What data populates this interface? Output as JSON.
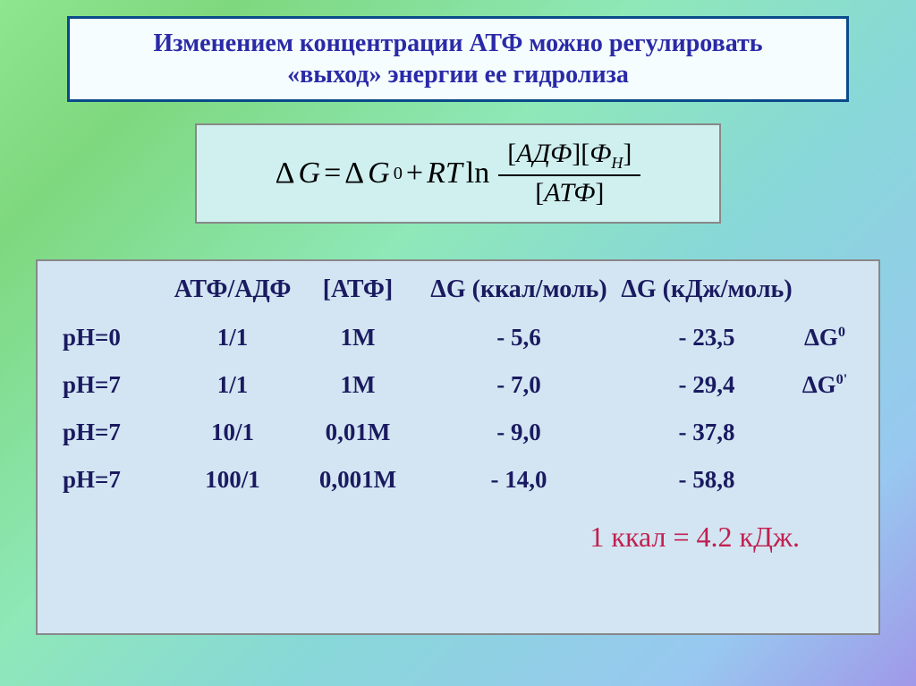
{
  "title": {
    "line1": "Изменением концентрации АТФ можно регулировать",
    "line2": "«выход» энергии ее гидролиза"
  },
  "formula": {
    "lhs_delta": "Δ",
    "lhs_G": "G",
    "eq1": " = ",
    "dG0_delta": "Δ",
    "dG0_G": "G",
    "dG0_sup": "0",
    "plus": " + ",
    "RT": "RT",
    "ln": " ln ",
    "num_left": "[",
    "num_adp": "АДФ",
    "num_mid": "][",
    "num_phi": "Ф",
    "num_phi_sub": "Н",
    "num_right": "]",
    "den_left": "[",
    "den_atp": "АТФ",
    "den_right": "]"
  },
  "headers": {
    "ratio": "АТФ/АДФ",
    "atp": "[АТФ]",
    "g_kcal": "ΔG (ккал/моль)",
    "g_kj": "ΔG (кДж/моль)"
  },
  "rows": [
    {
      "ph": "pH=0",
      "ratio": "1/1",
      "atp": "1M",
      "g_kcal": "- 5,6",
      "g_kj": "- 23,5",
      "note": "ΔG",
      "note_sup": "0"
    },
    {
      "ph": "pH=7",
      "ratio": "1/1",
      "atp": "1M",
      "g_kcal": "- 7,0",
      "g_kj": "- 29,4",
      "note": "ΔG",
      "note_sup": "0'"
    },
    {
      "ph": "pH=7",
      "ratio": "10/1",
      "atp": "0,01M",
      "g_kcal": "- 9,0",
      "g_kj": "- 37,8",
      "note": "",
      "note_sup": ""
    },
    {
      "ph": "pH=7",
      "ratio": "100/1",
      "atp": "0,001M",
      "g_kcal": "- 14,0",
      "g_kj": "- 58,8",
      "note": "",
      "note_sup": ""
    }
  ],
  "conversion": "1 ккал = 4.2 кДж.",
  "colors": {
    "title_border": "#0a4a8a",
    "title_bg": "#f5fdfe",
    "title_text": "#2a2aa8",
    "formula_bg": "#d0f0f0",
    "table_bg": "#d3e5f2",
    "table_text": "#1a1a60",
    "conv_text": "#c02050"
  },
  "fontsize": {
    "title": 28,
    "formula": 34,
    "header": 28,
    "row": 27,
    "conv": 32
  }
}
